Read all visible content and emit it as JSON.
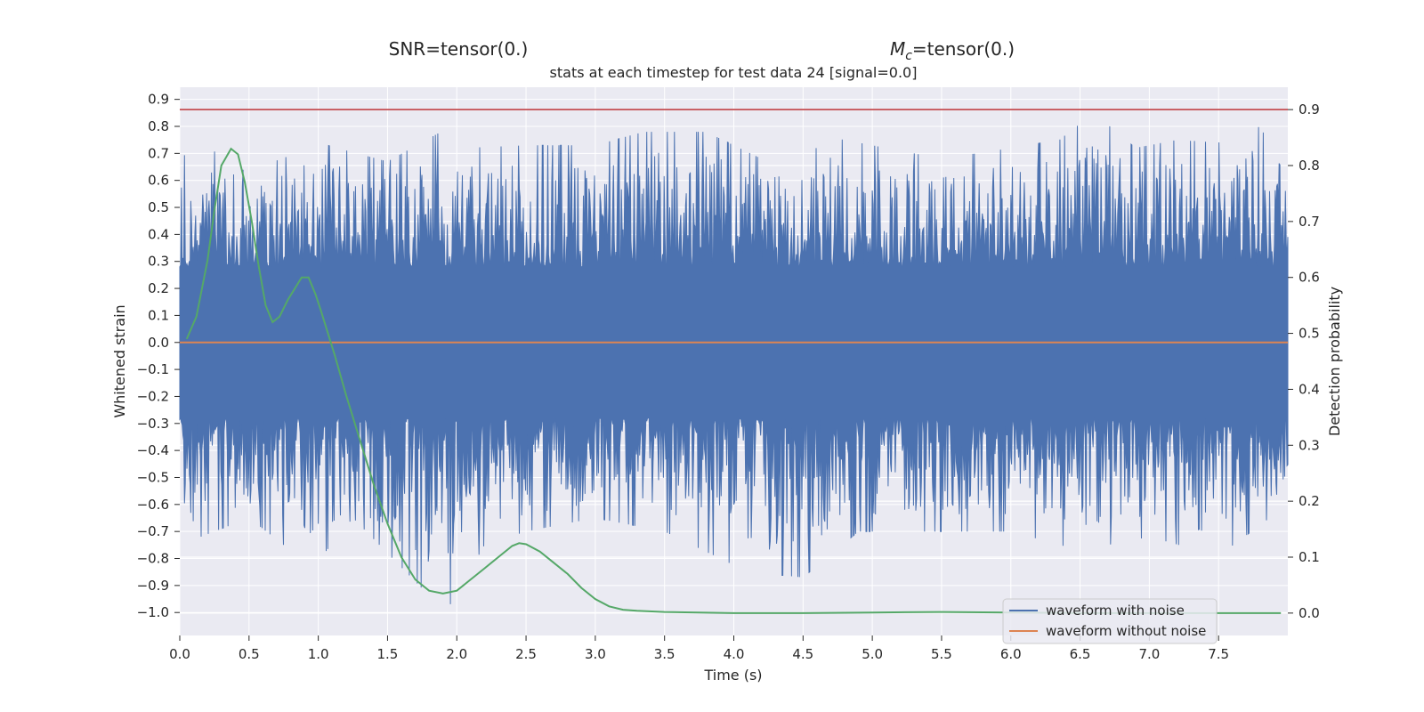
{
  "header": {
    "snr_label": "SNR=tensor(0.)",
    "mc_prefix": "M",
    "mc_subscript": "c",
    "mc_suffix": "=tensor(0.)",
    "subtitle": "stats at each timestep for test data 24 [signal=0.0]"
  },
  "chart_data": {
    "type": "line",
    "xlabel": "Time (s)",
    "ylabel": "Whitened strain",
    "ylabel_right": "Detection probability",
    "xlim": [
      0.0,
      8.0
    ],
    "ylim": [
      -1.085,
      0.945
    ],
    "ylim_right": [
      -0.04,
      0.94
    ],
    "x_ticks": [
      "0.0",
      "0.5",
      "1.0",
      "1.5",
      "2.0",
      "2.5",
      "3.0",
      "3.5",
      "4.0",
      "4.5",
      "5.0",
      "5.5",
      "6.0",
      "6.5",
      "7.0",
      "7.5"
    ],
    "y_ticks": [
      "0.9",
      "0.8",
      "0.7",
      "0.6",
      "0.5",
      "0.4",
      "0.3",
      "0.2",
      "0.1",
      "0.0",
      "−0.1",
      "−0.2",
      "−0.3",
      "−0.4",
      "−0.5",
      "−0.6",
      "−0.7",
      "−0.8",
      "−0.9",
      "−1.0"
    ],
    "y_ticks_right": [
      "0.9",
      "0.8",
      "0.7",
      "0.6",
      "0.5",
      "0.4",
      "0.3",
      "0.2",
      "0.1",
      "0.0"
    ],
    "grid": true,
    "legend_position": "bottom-right",
    "colors": {
      "noise": "#4c72b0",
      "clean": "#dd8452",
      "probability": "#55a868",
      "threshold": "#c44e52",
      "axes_bg": "#eaeaf2",
      "grid": "#ffffff"
    },
    "series": [
      {
        "name": "waveform with noise",
        "axis": "left",
        "note_estimated": true,
        "envelope_top": [
          [
            0.0,
            0.82
          ],
          [
            0.1,
            0.45
          ],
          [
            0.2,
            0.82
          ],
          [
            0.3,
            0.6
          ],
          [
            0.5,
            0.65
          ],
          [
            0.75,
            0.68
          ],
          [
            0.92,
            0.75
          ],
          [
            1.5,
            0.67
          ],
          [
            1.92,
            0.79
          ],
          [
            2.05,
            0.72
          ],
          [
            2.5,
            0.73
          ],
          [
            3.0,
            0.73
          ],
          [
            3.35,
            0.78
          ],
          [
            3.8,
            0.78
          ],
          [
            4.2,
            0.68
          ],
          [
            4.6,
            0.72
          ],
          [
            4.7,
            0.76
          ],
          [
            5.5,
            0.68
          ],
          [
            6.0,
            0.72
          ],
          [
            6.35,
            0.75
          ],
          [
            6.6,
            0.85
          ],
          [
            6.9,
            0.72
          ],
          [
            7.2,
            0.75
          ],
          [
            7.5,
            0.74
          ],
          [
            7.8,
            0.8
          ],
          [
            8.0,
            0.6
          ]
        ],
        "envelope_bottom": [
          [
            0.0,
            -0.55
          ],
          [
            0.05,
            -0.85
          ],
          [
            0.15,
            -0.72
          ],
          [
            0.5,
            -0.65
          ],
          [
            0.75,
            -0.75
          ],
          [
            0.95,
            -0.84
          ],
          [
            1.25,
            -0.65
          ],
          [
            1.92,
            -1.0
          ],
          [
            2.2,
            -0.75
          ],
          [
            2.5,
            -0.7
          ],
          [
            3.0,
            -0.65
          ],
          [
            3.5,
            -0.7
          ],
          [
            4.1,
            -0.85
          ],
          [
            4.5,
            -0.87
          ],
          [
            4.9,
            -0.7
          ],
          [
            5.5,
            -0.7
          ],
          [
            6.0,
            -0.7
          ],
          [
            6.5,
            -0.77
          ],
          [
            7.0,
            -0.72
          ],
          [
            7.5,
            -0.79
          ],
          [
            8.0,
            -0.6
          ]
        ]
      },
      {
        "name": "waveform without noise",
        "axis": "left",
        "x": [
          0.0,
          8.0
        ],
        "y": [
          0.0,
          0.0
        ]
      },
      {
        "axis": "right",
        "x": [
          0.05,
          0.12,
          0.2,
          0.25,
          0.3,
          0.37,
          0.42,
          0.47,
          0.52,
          0.57,
          0.62,
          0.67,
          0.72,
          0.78,
          0.83,
          0.88,
          0.93,
          0.98,
          1.02,
          1.07,
          1.12,
          1.2,
          1.3,
          1.4,
          1.5,
          1.6,
          1.7,
          1.8,
          1.9,
          2.0,
          2.1,
          2.2,
          2.3,
          2.4,
          2.45,
          2.5,
          2.6,
          2.7,
          2.8,
          2.9,
          3.0,
          3.1,
          3.2,
          3.3,
          3.5,
          4.0,
          4.5,
          5.0,
          5.5,
          6.0,
          6.5,
          7.0,
          7.5,
          7.95
        ],
        "y": [
          0.49,
          0.53,
          0.63,
          0.72,
          0.8,
          0.83,
          0.82,
          0.77,
          0.7,
          0.62,
          0.55,
          0.52,
          0.53,
          0.56,
          0.58,
          0.6,
          0.6,
          0.57,
          0.54,
          0.5,
          0.46,
          0.39,
          0.31,
          0.23,
          0.16,
          0.1,
          0.06,
          0.04,
          0.035,
          0.04,
          0.06,
          0.08,
          0.1,
          0.12,
          0.125,
          0.123,
          0.11,
          0.09,
          0.07,
          0.045,
          0.025,
          0.012,
          0.006,
          0.004,
          0.002,
          0.0,
          0.0,
          0.001,
          0.002,
          0.001,
          0.0,
          0.0,
          0.0,
          0.0
        ]
      },
      {
        "axis": "right",
        "x": [
          0.0,
          8.0
        ],
        "y": [
          0.9,
          0.9
        ]
      }
    ]
  }
}
